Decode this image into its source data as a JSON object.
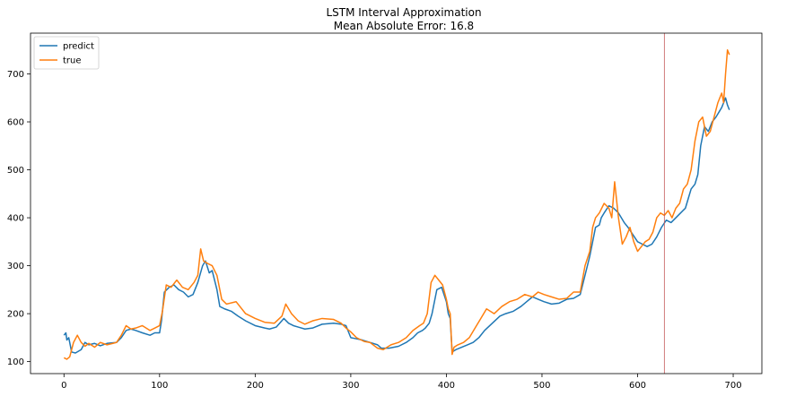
{
  "chart_data": {
    "type": "line",
    "title": "LSTM Interval Approximation",
    "subtitle": "Mean Absolute Error: 16.8",
    "xlabel": "",
    "ylabel": "",
    "xlim": [
      -35,
      730
    ],
    "ylim": [
      75,
      785
    ],
    "xticks": [
      0,
      100,
      200,
      300,
      400,
      500,
      600,
      700
    ],
    "yticks": [
      100,
      200,
      300,
      400,
      500,
      600,
      700
    ],
    "grid": false,
    "legend": "upper-left",
    "vline": {
      "x": 628,
      "color": "#c45a5a"
    },
    "series": [
      {
        "name": "predict",
        "color": "#1f77b4",
        "x": [
          0,
          2,
          3,
          5,
          8,
          12,
          18,
          22,
          26,
          32,
          38,
          45,
          55,
          60,
          65,
          70,
          75,
          82,
          90,
          95,
          100,
          102,
          105,
          110,
          115,
          120,
          125,
          130,
          135,
          140,
          145,
          148,
          152,
          155,
          160,
          163,
          168,
          175,
          182,
          190,
          200,
          210,
          215,
          222,
          230,
          235,
          240,
          245,
          252,
          260,
          270,
          282,
          290,
          295,
          298,
          300,
          305,
          312,
          320,
          328,
          332,
          340,
          350,
          358,
          365,
          370,
          375,
          378,
          382,
          385,
          390,
          395,
          400,
          402,
          404,
          406,
          410,
          416,
          422,
          428,
          434,
          440,
          448,
          456,
          462,
          470,
          478,
          484,
          490,
          496,
          502,
          510,
          518,
          526,
          533,
          540,
          545,
          550,
          553,
          556,
          560,
          562,
          565,
          570,
          575,
          580,
          586,
          590,
          595,
          600,
          605,
          610,
          615,
          620,
          625,
          630,
          635,
          640,
          645,
          650,
          653,
          656,
          660,
          663,
          666,
          670,
          674,
          678,
          682,
          685,
          688,
          690,
          692,
          694,
          696
        ],
        "y": [
          155,
          160,
          145,
          150,
          120,
          118,
          125,
          140,
          135,
          138,
          133,
          138,
          140,
          150,
          165,
          168,
          165,
          160,
          155,
          160,
          160,
          185,
          245,
          255,
          260,
          250,
          245,
          235,
          240,
          265,
          300,
          310,
          285,
          290,
          250,
          215,
          210,
          205,
          195,
          185,
          175,
          170,
          168,
          172,
          190,
          180,
          175,
          172,
          168,
          170,
          178,
          180,
          178,
          175,
          160,
          150,
          148,
          145,
          140,
          135,
          128,
          128,
          132,
          140,
          150,
          160,
          165,
          170,
          180,
          200,
          250,
          255,
          225,
          200,
          190,
          120,
          125,
          130,
          135,
          140,
          150,
          165,
          180,
          195,
          200,
          205,
          215,
          225,
          235,
          230,
          225,
          220,
          222,
          230,
          232,
          240,
          280,
          320,
          350,
          380,
          385,
          400,
          410,
          425,
          420,
          410,
          390,
          380,
          365,
          350,
          345,
          340,
          345,
          360,
          380,
          395,
          390,
          400,
          410,
          420,
          440,
          460,
          470,
          490,
          550,
          590,
          580,
          600,
          610,
          620,
          630,
          640,
          650,
          635,
          625
        ]
      },
      {
        "name": "true",
        "color": "#ff7f0e",
        "x": [
          0,
          3,
          6,
          10,
          14,
          18,
          22,
          26,
          32,
          38,
          45,
          55,
          60,
          65,
          70,
          75,
          82,
          90,
          95,
          100,
          103,
          107,
          112,
          118,
          124,
          130,
          136,
          140,
          143,
          146,
          150,
          155,
          160,
          165,
          170,
          180,
          190,
          200,
          210,
          220,
          228,
          232,
          238,
          245,
          252,
          260,
          270,
          282,
          290,
          295,
          300,
          306,
          314,
          320,
          328,
          334,
          342,
          350,
          358,
          365,
          372,
          376,
          380,
          384,
          388,
          392,
          396,
          400,
          402,
          404,
          406,
          408,
          412,
          418,
          424,
          430,
          436,
          442,
          450,
          458,
          466,
          474,
          482,
          490,
          496,
          502,
          510,
          518,
          526,
          533,
          540,
          545,
          550,
          553,
          556,
          560,
          565,
          570,
          573,
          576,
          580,
          584,
          588,
          592,
          596,
          600,
          604,
          608,
          612,
          616,
          620,
          624,
          628,
          632,
          636,
          640,
          644,
          648,
          652,
          656,
          660,
          664,
          668,
          672,
          676,
          680,
          684,
          688,
          690,
          692,
          694,
          696
        ],
        "y": [
          108,
          105,
          110,
          140,
          155,
          140,
          132,
          138,
          130,
          140,
          135,
          140,
          155,
          175,
          168,
          170,
          175,
          165,
          170,
          175,
          205,
          260,
          255,
          270,
          255,
          250,
          265,
          280,
          335,
          310,
          305,
          300,
          280,
          230,
          220,
          225,
          200,
          190,
          182,
          180,
          195,
          220,
          200,
          185,
          178,
          185,
          190,
          188,
          180,
          170,
          162,
          150,
          142,
          140,
          128,
          125,
          135,
          140,
          150,
          165,
          175,
          180,
          200,
          265,
          280,
          270,
          260,
          230,
          210,
          200,
          115,
          130,
          135,
          140,
          150,
          170,
          190,
          210,
          200,
          215,
          225,
          230,
          240,
          235,
          245,
          240,
          235,
          230,
          232,
          245,
          245,
          300,
          330,
          380,
          400,
          410,
          430,
          420,
          400,
          475,
          400,
          345,
          360,
          380,
          350,
          330,
          340,
          350,
          355,
          370,
          400,
          410,
          405,
          415,
          400,
          420,
          430,
          460,
          470,
          500,
          560,
          600,
          610,
          570,
          580,
          610,
          640,
          660,
          640,
          700,
          750,
          740
        ]
      }
    ]
  }
}
